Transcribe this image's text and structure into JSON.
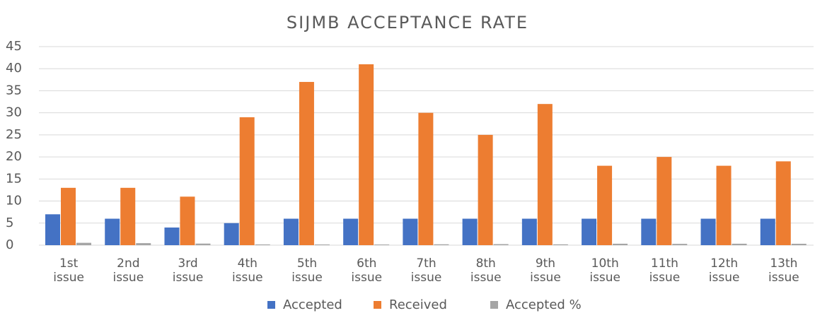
{
  "chart_data": {
    "type": "bar",
    "title": "SIJMB ACCEPTANCE RATE",
    "categories": [
      "1st issue",
      "2nd issue",
      "3rd issue",
      "4th issue",
      "5th issue",
      "6th issue",
      "7th issue",
      "8th issue",
      "9th issue",
      "10th issue",
      "11th issue",
      "12th issue",
      "13th issue"
    ],
    "series": [
      {
        "name": "Accepted",
        "color": "#4472c4",
        "values": [
          7,
          6,
          4,
          5,
          6,
          6,
          6,
          6,
          6,
          6,
          6,
          6,
          6
        ]
      },
      {
        "name": "Received",
        "color": "#ed7d31",
        "values": [
          13,
          13,
          11,
          29,
          37,
          41,
          30,
          25,
          32,
          18,
          20,
          18,
          19
        ]
      },
      {
        "name": "Accepted %",
        "color": "#a5a5a5",
        "values": [
          0.54,
          0.46,
          0.36,
          0.17,
          0.16,
          0.15,
          0.2,
          0.24,
          0.19,
          0.33,
          0.3,
          0.33,
          0.32
        ]
      }
    ],
    "ylim": [
      0,
      45
    ],
    "yticks": [
      0,
      5,
      10,
      15,
      20,
      25,
      30,
      35,
      40,
      45
    ],
    "grid": true,
    "legend": "bottom"
  }
}
